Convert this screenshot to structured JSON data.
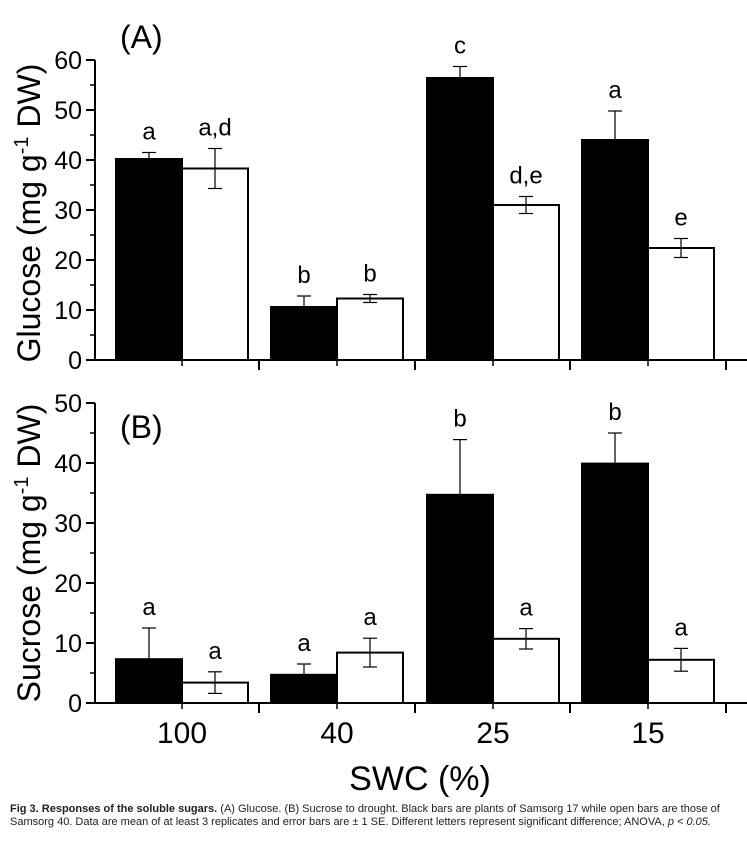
{
  "chart_data": [
    {
      "type": "bar",
      "panel_label": "(A)",
      "ylabel_prefix": "Glucose (mg g",
      "ylabel_sup": "-1",
      "ylabel_suffix": " DW)",
      "ylim": [
        0,
        60
      ],
      "yticks": [
        "0",
        "10",
        "20",
        "30",
        "40",
        "50",
        "60"
      ],
      "categories": [
        "100",
        "40",
        "25",
        "15"
      ],
      "series": [
        {
          "color": "#000000",
          "values": [
            40.2,
            10.6,
            56.4,
            44.0
          ],
          "errors": [
            1.3,
            2.2,
            2.3,
            5.8
          ],
          "letters": [
            "a",
            "b",
            "c",
            "a"
          ]
        },
        {
          "color": "#ffffff",
          "values": [
            38.3,
            12.3,
            31.0,
            22.4
          ],
          "errors": [
            4.0,
            0.8,
            1.7,
            1.9
          ],
          "letters": [
            "a,d",
            "b",
            "d,e",
            "e"
          ]
        }
      ]
    },
    {
      "type": "bar",
      "panel_label": "(B)",
      "ylabel_prefix": "Sucrose (mg g",
      "ylabel_sup": "-1",
      "ylabel_suffix": " DW)",
      "ylim": [
        0,
        50
      ],
      "yticks": [
        "0",
        "10",
        "20",
        "30",
        "40",
        "50"
      ],
      "categories": [
        "100",
        "40",
        "25",
        "15"
      ],
      "xlabel": "SWC (%)",
      "series": [
        {
          "color": "#000000",
          "values": [
            7.3,
            4.7,
            34.7,
            39.9
          ],
          "errors": [
            5.2,
            1.8,
            9.2,
            5.1
          ],
          "letters": [
            "a",
            "a",
            "b",
            "b"
          ]
        },
        {
          "color": "#ffffff",
          "values": [
            3.4,
            8.4,
            10.7,
            7.2
          ],
          "errors": [
            1.8,
            2.4,
            1.7,
            1.9
          ],
          "letters": [
            "a",
            "a",
            "a",
            "a"
          ]
        }
      ]
    }
  ],
  "caption": {
    "lead": "Fig 3. Responses of the soluble sugars.",
    "body": " (A) Glucose. (B) Sucrose to drought. Black bars are plants of Samsorg 17 while open bars are those of Samsorg 40. Data are mean of at least 3 replicates and error bars are ± 1 SE. Different letters represent significant difference; ANOVA, ",
    "p_value": "p < 0.05."
  }
}
